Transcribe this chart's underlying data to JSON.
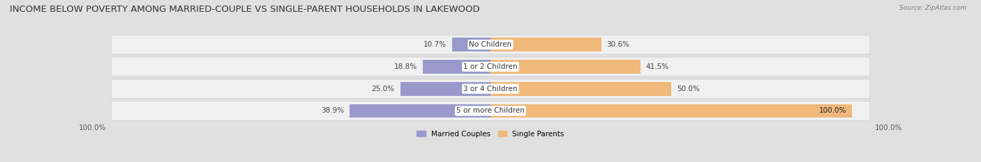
{
  "title": "INCOME BELOW POVERTY AMONG MARRIED-COUPLE VS SINGLE-PARENT HOUSEHOLDS IN LAKEWOOD",
  "source": "Source: ZipAtlas.com",
  "categories": [
    "No Children",
    "1 or 2 Children",
    "3 or 4 Children",
    "5 or more Children"
  ],
  "married_values": [
    10.7,
    18.8,
    25.0,
    38.9
  ],
  "single_values": [
    30.6,
    41.5,
    50.0,
    100.0
  ],
  "married_color": "#9999cc",
  "single_color": "#f0b87a",
  "bar_height": 0.62,
  "background_color": "#e0e0e0",
  "bar_bg_color": "#f0f0f0",
  "title_fontsize": 9.5,
  "label_fontsize": 7.5,
  "axis_label_fontsize": 7.5,
  "max_val": 100,
  "left_axis_label": "100.0%",
  "right_axis_label": "100.0%"
}
